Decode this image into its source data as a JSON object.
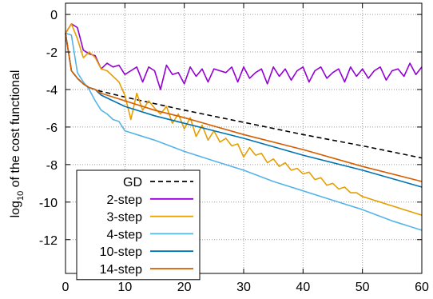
{
  "chart_data": {
    "type": "line",
    "title": "",
    "xlabel": "",
    "ylabel_main": "log",
    "ylabel_sub": "10",
    "ylabel_rest": " of the cost functional",
    "xlim": [
      0,
      60
    ],
    "ylim": [
      -13.8,
      0.6
    ],
    "x_ticks": [
      0,
      10,
      20,
      30,
      40,
      50,
      60
    ],
    "y_ticks": [
      0,
      -2,
      -4,
      -6,
      -8,
      -10,
      -12
    ],
    "grid": true,
    "legend_position": "bottom-left",
    "series": [
      {
        "name": "GD",
        "color": "#000000",
        "dashed": true,
        "x": [
          0,
          1,
          2,
          3,
          4,
          5,
          6,
          8,
          10,
          15,
          20,
          30,
          40,
          50,
          60
        ],
        "y": [
          -1.0,
          -3.0,
          -3.4,
          -3.7,
          -3.9,
          -4.0,
          -4.1,
          -4.25,
          -4.4,
          -4.75,
          -5.1,
          -5.75,
          -6.4,
          -7.0,
          -7.65
        ]
      },
      {
        "name": "2-step",
        "color": "#9400D3",
        "dashed": false,
        "x": [
          0,
          1,
          2,
          3,
          4,
          5,
          6,
          7,
          8,
          9,
          10,
          11,
          12,
          13,
          14,
          15,
          16,
          17,
          18,
          19,
          20,
          21,
          22,
          23,
          24,
          25,
          26,
          27,
          28,
          29,
          30,
          31,
          32,
          33,
          34,
          35,
          36,
          37,
          38,
          39,
          40,
          41,
          42,
          43,
          44,
          45,
          46,
          47,
          48,
          49,
          50,
          51,
          52,
          53,
          54,
          55,
          56,
          57,
          58,
          59,
          60
        ],
        "y": [
          -1.0,
          -0.5,
          -0.7,
          -1.9,
          -2.1,
          -2.2,
          -2.9,
          -2.6,
          -2.8,
          -2.7,
          -3.2,
          -3.0,
          -2.8,
          -3.6,
          -2.8,
          -3.0,
          -4.0,
          -2.7,
          -3.2,
          -3.1,
          -3.7,
          -2.8,
          -3.3,
          -2.9,
          -3.6,
          -2.9,
          -3.0,
          -3.1,
          -2.8,
          -3.6,
          -2.8,
          -3.4,
          -3.1,
          -2.9,
          -3.7,
          -2.8,
          -3.3,
          -2.9,
          -3.5,
          -3.0,
          -2.8,
          -3.6,
          -3.0,
          -2.8,
          -3.4,
          -3.1,
          -2.9,
          -3.6,
          -2.8,
          -3.3,
          -2.9,
          -3.4,
          -3.0,
          -2.8,
          -3.5,
          -3.0,
          -2.9,
          -3.3,
          -2.6,
          -3.2,
          -2.8
        ]
      },
      {
        "name": "3-step",
        "color": "#E69F00",
        "dashed": false,
        "x": [
          0,
          1,
          2,
          3,
          4,
          5,
          6,
          7,
          8,
          9,
          10,
          11,
          12,
          13,
          14,
          15,
          16,
          17,
          18,
          19,
          20,
          21,
          22,
          23,
          24,
          25,
          26,
          27,
          28,
          29,
          30,
          31,
          32,
          33,
          34,
          35,
          36,
          37,
          38,
          39,
          40,
          41,
          42,
          43,
          44,
          45,
          46,
          47,
          48,
          49,
          50,
          51,
          52,
          53,
          54,
          55,
          56,
          57,
          58,
          59,
          60
        ],
        "y": [
          -1.0,
          -0.5,
          -1.3,
          -2.3,
          -2.0,
          -2.3,
          -2.9,
          -3.0,
          -3.3,
          -3.6,
          -4.3,
          -5.6,
          -4.2,
          -5.1,
          -4.6,
          -5.0,
          -5.3,
          -4.9,
          -5.8,
          -5.3,
          -6.1,
          -5.5,
          -6.5,
          -5.9,
          -6.7,
          -6.2,
          -6.8,
          -6.6,
          -7.0,
          -6.9,
          -7.6,
          -7.1,
          -7.5,
          -7.4,
          -7.9,
          -7.7,
          -8.1,
          -7.9,
          -8.3,
          -8.2,
          -8.5,
          -8.4,
          -8.8,
          -8.7,
          -9.1,
          -9.0,
          -9.3,
          -9.2,
          -9.5,
          -9.5,
          -9.7,
          -9.8,
          -9.9,
          -10.0,
          -10.1,
          -10.2,
          -10.3,
          -10.4,
          -10.5,
          -10.6,
          -10.7
        ]
      },
      {
        "name": "4-step",
        "color": "#56B4E9",
        "dashed": false,
        "x": [
          0,
          1,
          2,
          3,
          4,
          5,
          6,
          7,
          8,
          9,
          10,
          12,
          15,
          20,
          25,
          30,
          35,
          40,
          45,
          50,
          55,
          60
        ],
        "y": [
          -1.0,
          -1.1,
          -3.1,
          -3.6,
          -4.0,
          -4.6,
          -5.1,
          -5.3,
          -5.6,
          -5.7,
          -6.2,
          -6.4,
          -6.7,
          -7.3,
          -7.8,
          -8.3,
          -8.9,
          -9.4,
          -9.9,
          -10.4,
          -11.0,
          -11.5
        ]
      },
      {
        "name": "10-step",
        "color": "#0072B2",
        "dashed": false,
        "x": [
          0,
          1,
          2,
          3,
          4,
          5,
          6,
          8,
          10,
          15,
          20,
          30,
          40,
          50,
          60
        ],
        "y": [
          -1.0,
          -3.0,
          -3.4,
          -3.7,
          -3.9,
          -4.0,
          -4.3,
          -4.6,
          -4.9,
          -5.4,
          -5.8,
          -6.6,
          -7.5,
          -8.3,
          -9.2
        ]
      },
      {
        "name": "14-step",
        "color": "#D55E00",
        "dashed": false,
        "x": [
          0,
          1,
          2,
          3,
          4,
          5,
          6,
          8,
          10,
          15,
          20,
          30,
          40,
          50,
          60
        ],
        "y": [
          -1.0,
          -3.0,
          -3.4,
          -3.7,
          -3.9,
          -4.0,
          -4.2,
          -4.4,
          -4.6,
          -5.1,
          -5.5,
          -6.4,
          -7.2,
          -8.1,
          -8.9
        ]
      }
    ]
  }
}
